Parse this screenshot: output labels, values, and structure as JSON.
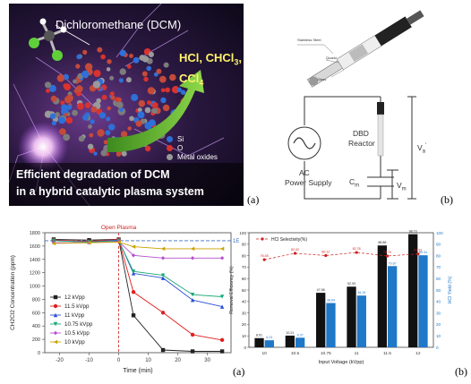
{
  "graphical_abstract": {
    "title": "Dichloromethane (DCM)",
    "products": [
      "HCl, CHCl",
      "3",
      ",",
      "CCl",
      "4"
    ],
    "legend": [
      {
        "label": "Si",
        "color": "#2f6fd8"
      },
      {
        "label": "O",
        "color": "#d8332f"
      },
      {
        "label": "Metal oxides",
        "color": "#9a9a9a"
      }
    ],
    "caption_line1": "Efficient degradation of DCM",
    "caption_line2": "in a hybrid catalytic plasma system",
    "panel_label": "(a)"
  },
  "setup": {
    "reactor_labels": [
      "Stainless Steel",
      "Quartz",
      "Glass"
    ],
    "circuit": {
      "source_label_1": "AC",
      "source_label_2": "Power Supply",
      "reactor_label_1": "DBD",
      "reactor_label_2": "Reactor",
      "cap_label": "C",
      "cap_sub": "m",
      "vm_label": "V",
      "vm_sub": "m",
      "va_label": "V",
      "va_sub": "a",
      "va_sup": "'"
    },
    "panel_label": "(b)"
  },
  "bottom_labels": {
    "left": "(a)",
    "right": "(b)"
  },
  "chart_data": [
    {
      "type": "line",
      "title": "",
      "annotation": "Open Plasma",
      "xlabel": "Time (min)",
      "ylabel": "CH2Cl2 Concentration (ppm)",
      "xlim": [
        -25,
        38
      ],
      "ylim": [
        0,
        1800
      ],
      "xticks": [
        -20,
        -10,
        0,
        10,
        20,
        30
      ],
      "yticks": [
        0,
        200,
        400,
        600,
        800,
        1000,
        1200,
        1400,
        1600,
        1800
      ],
      "reference_line": 1680,
      "reference_label": "1E",
      "x": [
        -22,
        -10,
        0,
        5,
        15,
        25,
        35
      ],
      "series": [
        {
          "name": "12 kVpp",
          "color": "#222222",
          "marker": "square",
          "values": [
            1700,
            1690,
            1700,
            560,
            40,
            20,
            20
          ]
        },
        {
          "name": "11.5 kVpp",
          "color": "#e02020",
          "marker": "circle",
          "values": [
            1690,
            1670,
            1700,
            910,
            600,
            270,
            190
          ]
        },
        {
          "name": "11 kVpp",
          "color": "#2a4fd6",
          "marker": "triangle",
          "values": [
            1680,
            1660,
            1690,
            1190,
            1120,
            790,
            690
          ]
        },
        {
          "name": "10.75 kVpp",
          "color": "#1aa87a",
          "marker": "triangle-down",
          "values": [
            1680,
            1660,
            1680,
            1220,
            1160,
            870,
            840
          ]
        },
        {
          "name": "10.5 kVpp",
          "color": "#b84fd0",
          "marker": "diamond",
          "values": [
            1650,
            1650,
            1670,
            1460,
            1420,
            1420,
            1420
          ]
        },
        {
          "name": "10 kVpp",
          "color": "#c9a200",
          "marker": "triangle-left",
          "values": [
            1640,
            1650,
            1660,
            1590,
            1560,
            1560,
            1560
          ]
        }
      ]
    },
    {
      "type": "bar",
      "title": "",
      "legend": "HCl Selectivity(%)",
      "xlabel": "Input Voltage (kVpp)",
      "ylabel_left": "Removal Efficiency (%)",
      "ylabel_right": "HCl Yield (%)",
      "categories": [
        "10",
        "10.5",
        "10.75",
        "11",
        "11.5",
        "12"
      ],
      "ylim": [
        0,
        100
      ],
      "yticks": [
        0,
        10,
        20,
        30,
        40,
        50,
        60,
        70,
        80,
        90,
        100
      ],
      "series": [
        {
          "name": "Removal Efficiency",
          "color": "#111111",
          "values": [
            8.01,
            10.21,
            47.58,
            52.93,
            88.88,
            98.73
          ]
        },
        {
          "name": "HCl Yield",
          "color": "#1f78c8",
          "values": [
            6.13,
            8.37,
            38.64,
            45.15,
            70.87,
            80.34
          ]
        },
        {
          "name": "HCl Selectivity(%)",
          "color": "#d02020",
          "values": [
            76.45,
            82.02,
            80.12,
            82.78,
            79.7,
            81.51
          ]
        }
      ]
    }
  ]
}
